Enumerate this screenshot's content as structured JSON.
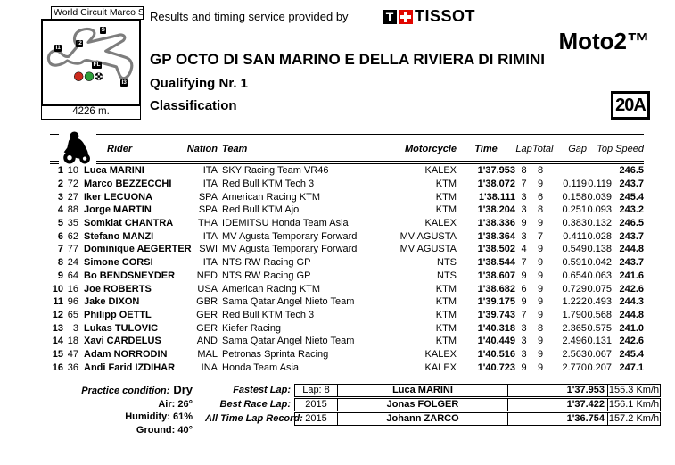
{
  "page": {
    "circuit_name": "World Circuit Marco Si",
    "track_length": "4226 m.",
    "provided_by": "Results and timing service provided by",
    "tissot_t": "T",
    "tissot_word": "TISSOT",
    "class_name": "Moto2™",
    "event_title": "GP OCTO DI SAN MARINO E DELLA RIVIERA DI RIMINI",
    "session_title": "Qualifying Nr. 1",
    "doc_title": "Classification",
    "page_code": "20A",
    "colors": {
      "tissot_red": "#e10600",
      "track_gray": "#7d7d7d",
      "light_red": "#cc2b1d",
      "light_green": "#2e9e3a"
    }
  },
  "track": {
    "labels": [
      {
        "text": "S"
      },
      {
        "text": "I1"
      },
      {
        "text": "I2"
      },
      {
        "text": "FL"
      },
      {
        "text": "I3"
      }
    ]
  },
  "table": {
    "columns": [
      "Rider",
      "Nation",
      "Team",
      "Motorcycle",
      "Time",
      "Lap",
      "Total",
      "Gap",
      "Top Speed"
    ],
    "rows": [
      {
        "pos": "1",
        "num": "10",
        "rider": "Luca MARINI",
        "nation": "ITA",
        "team": "SKY Racing Team VR46",
        "motorcycle": "KALEX",
        "time": "1'37.953",
        "lap": "8",
        "total": "8",
        "gap_first": "",
        "gap_prev": "",
        "top_speed": "246.5"
      },
      {
        "pos": "2",
        "num": "72",
        "rider": "Marco BEZZECCHI",
        "nation": "ITA",
        "team": "Red Bull KTM Tech 3",
        "motorcycle": "KTM",
        "time": "1'38.072",
        "lap": "7",
        "total": "9",
        "gap_first": "0.119",
        "gap_prev": "0.119",
        "top_speed": "243.7"
      },
      {
        "pos": "3",
        "num": "27",
        "rider": "Iker LECUONA",
        "nation": "SPA",
        "team": "American Racing KTM",
        "motorcycle": "KTM",
        "time": "1'38.111",
        "lap": "3",
        "total": "6",
        "gap_first": "0.158",
        "gap_prev": "0.039",
        "top_speed": "245.4"
      },
      {
        "pos": "4",
        "num": "88",
        "rider": "Jorge MARTIN",
        "nation": "SPA",
        "team": "Red Bull KTM Ajo",
        "motorcycle": "KTM",
        "time": "1'38.204",
        "lap": "3",
        "total": "8",
        "gap_first": "0.251",
        "gap_prev": "0.093",
        "top_speed": "243.2"
      },
      {
        "pos": "5",
        "num": "35",
        "rider": "Somkiat CHANTRA",
        "nation": "THA",
        "team": "IDEMITSU Honda Team Asia",
        "motorcycle": "KALEX",
        "time": "1'38.336",
        "lap": "9",
        "total": "9",
        "gap_first": "0.383",
        "gap_prev": "0.132",
        "top_speed": "246.5"
      },
      {
        "pos": "6",
        "num": "62",
        "rider": "Stefano MANZI",
        "nation": "ITA",
        "team": "MV Agusta Temporary Forward",
        "motorcycle": "MV AGUSTA",
        "time": "1'38.364",
        "lap": "3",
        "total": "7",
        "gap_first": "0.411",
        "gap_prev": "0.028",
        "top_speed": "243.7"
      },
      {
        "pos": "7",
        "num": "77",
        "rider": "Dominique AEGERTER",
        "nation": "SWI",
        "team": "MV Agusta Temporary Forward",
        "motorcycle": "MV AGUSTA",
        "time": "1'38.502",
        "lap": "4",
        "total": "9",
        "gap_first": "0.549",
        "gap_prev": "0.138",
        "top_speed": "244.8"
      },
      {
        "pos": "8",
        "num": "24",
        "rider": "Simone CORSI",
        "nation": "ITA",
        "team": "NTS RW Racing GP",
        "motorcycle": "NTS",
        "time": "1'38.544",
        "lap": "7",
        "total": "9",
        "gap_first": "0.591",
        "gap_prev": "0.042",
        "top_speed": "243.7"
      },
      {
        "pos": "9",
        "num": "64",
        "rider": "Bo BENDSNEYDER",
        "nation": "NED",
        "team": "NTS RW Racing GP",
        "motorcycle": "NTS",
        "time": "1'38.607",
        "lap": "9",
        "total": "9",
        "gap_first": "0.654",
        "gap_prev": "0.063",
        "top_speed": "241.6"
      },
      {
        "pos": "10",
        "num": "16",
        "rider": "Joe ROBERTS",
        "nation": "USA",
        "team": "American Racing KTM",
        "motorcycle": "KTM",
        "time": "1'38.682",
        "lap": "6",
        "total": "9",
        "gap_first": "0.729",
        "gap_prev": "0.075",
        "top_speed": "242.6"
      },
      {
        "pos": "11",
        "num": "96",
        "rider": "Jake DIXON",
        "nation": "GBR",
        "team": "Sama Qatar Angel Nieto Team",
        "motorcycle": "KTM",
        "time": "1'39.175",
        "lap": "9",
        "total": "9",
        "gap_first": "1.222",
        "gap_prev": "0.493",
        "top_speed": "244.3"
      },
      {
        "pos": "12",
        "num": "65",
        "rider": "Philipp OETTL",
        "nation": "GER",
        "team": "Red Bull KTM Tech 3",
        "motorcycle": "KTM",
        "time": "1'39.743",
        "lap": "7",
        "total": "9",
        "gap_first": "1.790",
        "gap_prev": "0.568",
        "top_speed": "244.8"
      },
      {
        "pos": "13",
        "num": "3",
        "rider": "Lukas TULOVIC",
        "nation": "GER",
        "team": "Kiefer Racing",
        "motorcycle": "KTM",
        "time": "1'40.318",
        "lap": "3",
        "total": "8",
        "gap_first": "2.365",
        "gap_prev": "0.575",
        "top_speed": "241.0"
      },
      {
        "pos": "14",
        "num": "18",
        "rider": "Xavi CARDELUS",
        "nation": "AND",
        "team": "Sama Qatar Angel Nieto Team",
        "motorcycle": "KTM",
        "time": "1'40.449",
        "lap": "3",
        "total": "9",
        "gap_first": "2.496",
        "gap_prev": "0.131",
        "top_speed": "242.6"
      },
      {
        "pos": "15",
        "num": "47",
        "rider": "Adam NORRODIN",
        "nation": "MAL",
        "team": "Petronas Sprinta Racing",
        "motorcycle": "KALEX",
        "time": "1'40.516",
        "lap": "3",
        "total": "9",
        "gap_first": "2.563",
        "gap_prev": "0.067",
        "top_speed": "245.4"
      },
      {
        "pos": "16",
        "num": "36",
        "rider": "Andi Farid IZDIHAR",
        "nation": "INA",
        "team": "Honda Team Asia",
        "motorcycle": "KALEX",
        "time": "1'40.723",
        "lap": "9",
        "total": "9",
        "gap_first": "2.770",
        "gap_prev": "0.207",
        "top_speed": "247.1"
      }
    ]
  },
  "conditions": {
    "practice_label": "Practice condition:",
    "practice_value": "Dry",
    "lines": [
      "Air: 26°",
      "Humidity: 61%",
      "Ground: 40°"
    ]
  },
  "records": {
    "rows": [
      {
        "label": "Fastest Lap:",
        "ref": "Lap: 8",
        "name": "Luca MARINI",
        "time": "1'37.953",
        "speed": "155.3 Km/h"
      },
      {
        "label": "Best Race Lap:",
        "ref": "2015",
        "name": "Jonas FOLGER",
        "time": "1'37.422",
        "speed": "156.1 Km/h"
      },
      {
        "label": "All Time Lap Record:",
        "ref": "2015",
        "name": "Johann ZARCO",
        "time": "1'36.754",
        "speed": "157.2 Km/h"
      }
    ]
  }
}
